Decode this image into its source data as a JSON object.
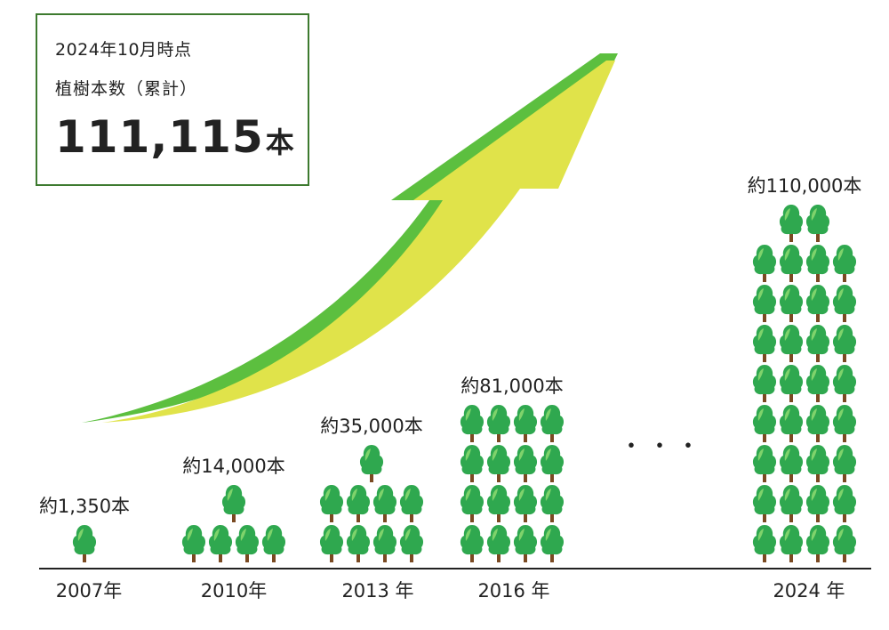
{
  "summary": {
    "date": "2024年10月時点",
    "label": "植樹本数（累計）",
    "value": "111,115",
    "unit": "本"
  },
  "chart_data": {
    "type": "pictograph",
    "categories": [
      "2007年",
      "2010年",
      "2013 年",
      "2016 年",
      "2024 年"
    ],
    "values": [
      1350,
      14000,
      35000,
      81000,
      110000
    ],
    "value_labels": [
      "約1,350本",
      "約14,000本",
      "約35,000本",
      "約81,000本",
      "約110,000本"
    ],
    "icons_shown": [
      1,
      5,
      9,
      16,
      34
    ],
    "icon": "tree-icon",
    "gap_marker": "・・・",
    "colors": {
      "tree_foliage": "#2fa84f",
      "tree_highlight": "#7fd36b",
      "trunk": "#7a4a22",
      "arrow_fill": "#e0e34a",
      "arrow_edge": "#5cbf3f",
      "baseline": "#222222",
      "box_border": "#3d7a2f"
    }
  }
}
